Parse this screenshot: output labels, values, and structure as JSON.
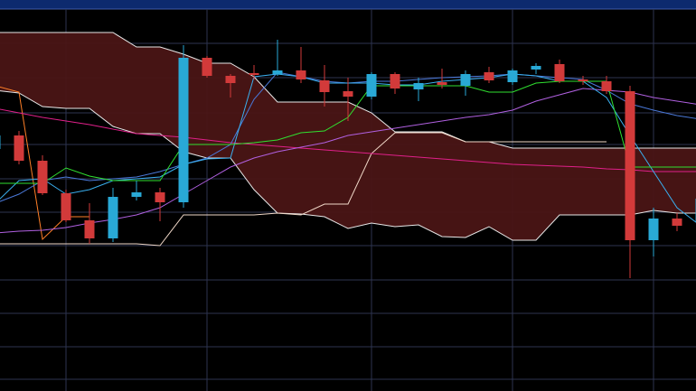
{
  "chart_data": {
    "type": "candlestick",
    "categories": [
      null,
      null,
      null,
      null,
      null,
      null,
      null,
      null,
      null,
      null,
      null,
      null,
      null,
      null,
      null,
      null,
      null,
      null,
      null,
      null,
      null,
      null,
      null,
      null,
      null,
      null,
      null,
      null,
      null,
      null,
      null
    ],
    "open": [
      268,
      283,
      255,
      219,
      189,
      169,
      215,
      220,
      209,
      369,
      349,
      352,
      351,
      355,
      344,
      332,
      326,
      351,
      334,
      342,
      338,
      353,
      342,
      356,
      362,
      345,
      343,
      332,
      167,
      191,
      187
    ],
    "high": [
      290,
      288,
      261,
      223,
      208,
      225,
      233,
      225,
      383,
      371,
      351,
      361,
      389,
      381,
      361,
      347,
      353,
      353,
      347,
      357,
      355,
      359,
      357,
      363,
      367,
      349,
      349,
      338,
      203,
      197,
      220
    ],
    "low": [
      260,
      251,
      217,
      187,
      163,
      165,
      211,
      188,
      203,
      347,
      325,
      345,
      349,
      341,
      315,
      299,
      323,
      329,
      321,
      335,
      327,
      341,
      339,
      351,
      341,
      339,
      329,
      125,
      149,
      177,
      180
    ],
    "close": [
      283,
      255,
      219,
      189,
      169,
      215,
      220,
      209,
      369,
      349,
      341,
      350,
      355,
      345,
      331,
      326,
      351,
      335,
      341,
      339,
      351,
      344,
      355,
      360,
      343,
      343,
      332,
      167,
      191,
      183,
      213
    ],
    "up_color": "#29a9d6",
    "down_color": "#d23a3a",
    "cloud": {
      "color": "#4a1515",
      "upper": [
        397,
        397,
        397,
        397,
        397,
        397,
        381,
        381,
        373,
        363,
        363,
        348,
        320,
        320,
        320,
        320,
        308,
        287,
        287,
        287,
        276,
        276,
        269,
        269,
        269,
        269,
        269,
        269,
        269,
        269,
        269
      ],
      "lower": [
        333,
        330,
        315,
        313,
        313,
        293,
        285,
        285,
        265,
        258,
        258,
        223,
        197,
        196,
        193,
        180,
        186,
        182,
        184,
        171,
        170,
        182,
        167,
        167,
        195,
        195,
        195,
        195,
        200,
        197,
        197
      ]
    },
    "series": [
      {
        "color": "#e8e8e8",
        "values": [
          397,
          397,
          397,
          397,
          397,
          397,
          381,
          381,
          373,
          363,
          363,
          348,
          320,
          320,
          320,
          320,
          308,
          287,
          287,
          287,
          276,
          276,
          269,
          269,
          269,
          269,
          269,
          269,
          269,
          269,
          269
        ]
      },
      {
        "color": "#e8e8e8",
        "values": [
          333,
          330,
          315,
          313,
          313,
          293,
          285,
          285,
          265,
          258,
          258,
          223,
          197,
          196,
          193,
          180,
          186,
          182,
          184,
          171,
          170,
          182,
          167,
          167,
          195,
          195,
          195,
          195,
          200,
          197,
          197
        ]
      },
      {
        "color": "#f0d8c8",
        "values": [
          163,
          163,
          163,
          163,
          163,
          163,
          163,
          161,
          195,
          195,
          195,
          195,
          197,
          195,
          207,
          207,
          263,
          286,
          286,
          286,
          276,
          276,
          276,
          276,
          276,
          276,
          276,
          null,
          null,
          null,
          null
        ]
      },
      {
        "color": "#ff7f27",
        "values": [
          338,
          331,
          168,
          193,
          193,
          null,
          null,
          null,
          null,
          null,
          null,
          null,
          null,
          null,
          null,
          null,
          null,
          null,
          null,
          null,
          null,
          null,
          null,
          null,
          null,
          null,
          null,
          null,
          null,
          null,
          null
        ]
      },
      {
        "color": "#e0208a",
        "values": [
          313,
          308,
          303,
          299,
          295,
          290,
          285,
          283,
          281,
          278,
          275,
          273,
          271,
          269,
          267,
          265,
          263,
          261,
          259,
          257,
          255,
          253,
          251,
          250,
          249,
          248,
          246,
          245,
          243,
          243,
          243
        ]
      },
      {
        "color": "#b060e0",
        "values": [
          175,
          177,
          178,
          181,
          186,
          190,
          195,
          203,
          218,
          233,
          248,
          258,
          265,
          270,
          275,
          283,
          287,
          291,
          295,
          299,
          303,
          306,
          311,
          321,
          328,
          335,
          333,
          331,
          325,
          321,
          317
        ]
      },
      {
        "color": "#4a78d8",
        "values": [
          208,
          218,
          233,
          237,
          233,
          235,
          237,
          243,
          251,
          258,
          273,
          323,
          353,
          348,
          343,
          341,
          343,
          343,
          345,
          347,
          348,
          349,
          351,
          349,
          347,
          345,
          333,
          318,
          311,
          305,
          301
        ]
      },
      {
        "color": "#3ab0f0",
        "values": [
          208,
          233,
          235,
          218,
          223,
          233,
          235,
          237,
          251,
          257,
          258,
          348,
          351,
          348,
          341,
          341,
          341,
          339,
          339,
          343,
          345,
          347,
          351,
          349,
          343,
          343,
          325,
          283,
          243,
          203,
          183
        ]
      },
      {
        "color": "#30e030",
        "values": [
          230,
          230,
          230,
          247,
          238,
          233,
          233,
          233,
          273,
          273,
          273,
          275,
          278,
          286,
          288,
          303,
          338,
          338,
          338,
          338,
          338,
          331,
          331,
          341,
          343,
          343,
          343,
          248,
          248,
          248,
          248
        ]
      }
    ],
    "ylim": [
      0,
      433
    ],
    "yticks": [
      13,
      49,
      86,
      123,
      161,
      198,
      235,
      273,
      308,
      347,
      385
    ],
    "xticks": [
      3,
      9,
      16,
      22,
      28
    ],
    "grid": true,
    "grid_color": "#2e3450"
  }
}
